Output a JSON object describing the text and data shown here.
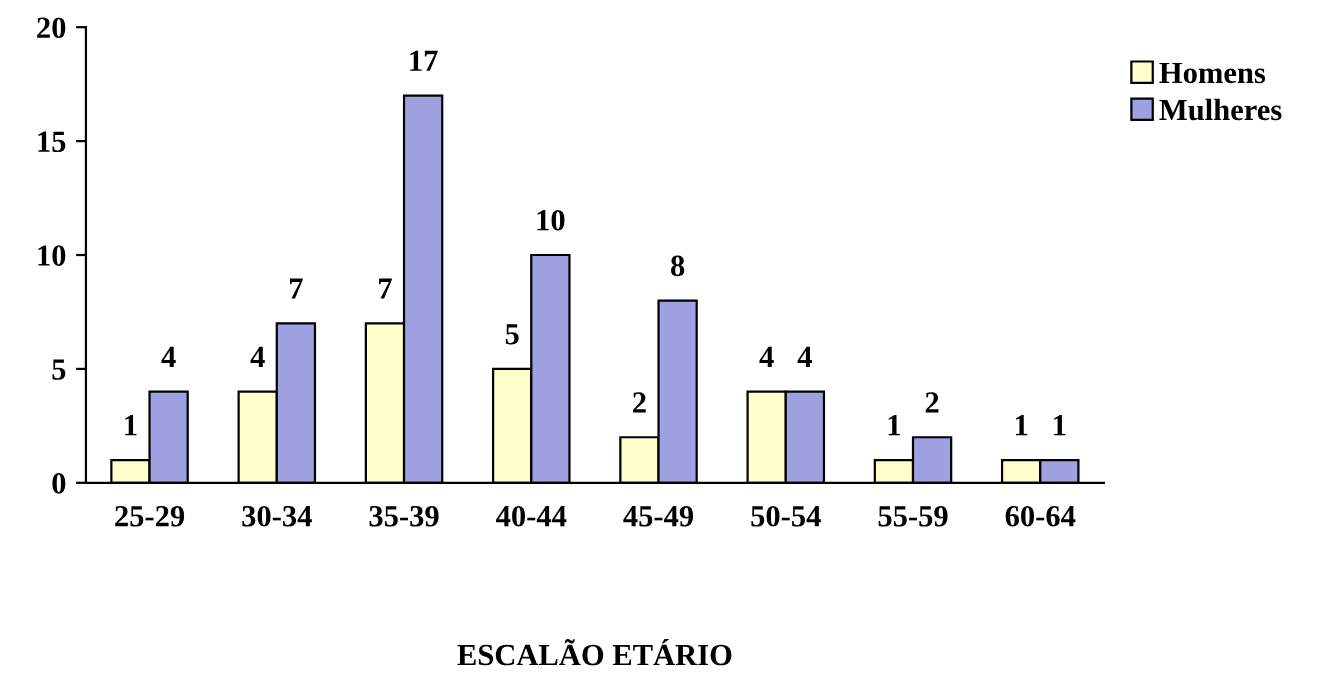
{
  "chart_data": {
    "type": "bar",
    "xlabel": "ESCALÃO ETÁRIO",
    "categories": [
      "25-29",
      "30-34",
      "35-39",
      "40-44",
      "45-49",
      "50-54",
      "55-59",
      "60-64"
    ],
    "series": [
      {
        "name": "Homens",
        "color": "#ffffcc",
        "values": [
          1,
          4,
          7,
          5,
          2,
          4,
          1,
          1
        ]
      },
      {
        "name": "Mulheres",
        "color": "#9fa0e0",
        "values": [
          4,
          7,
          17,
          10,
          8,
          4,
          2,
          1
        ]
      }
    ],
    "ylim": [
      0,
      20
    ],
    "yticks": [
      0,
      5,
      10,
      15,
      20
    ],
    "grid": false,
    "legend": "top right",
    "data_labels": true
  }
}
